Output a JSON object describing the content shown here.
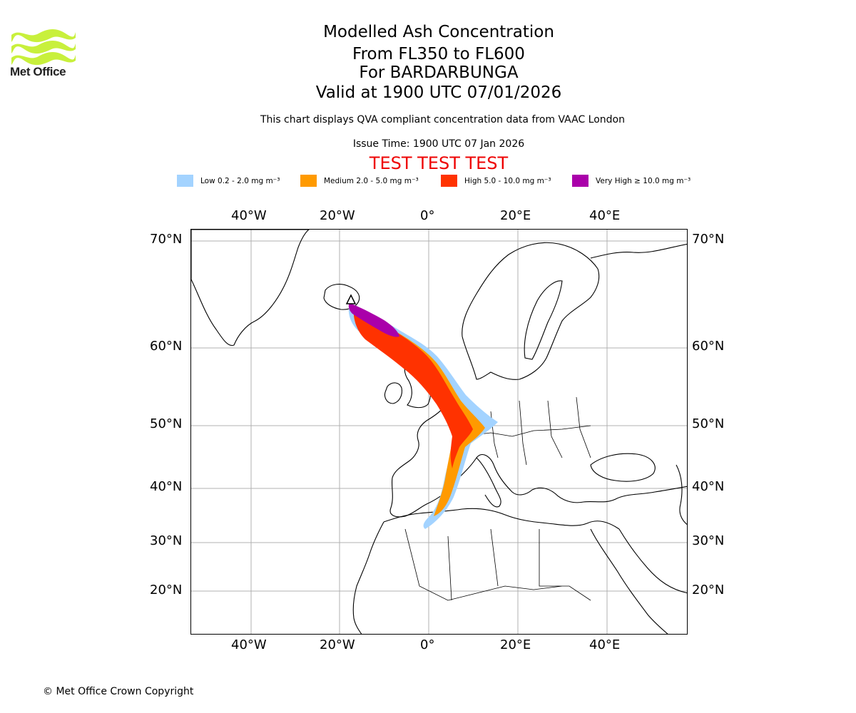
{
  "header": {
    "brand": "Met Office",
    "title_line1": "Modelled Ash Concentration",
    "title_line2": "From FL350 to FL600",
    "title_line3": "For BARDARBUNGA",
    "title_line4": "Valid at 1900 UTC 07/01/2026",
    "compliance_note": "This chart displays QVA compliant concentration data from VAAC London",
    "issue_time": "Issue Time: 1900 UTC 07 Jan 2026",
    "test_banner": "TEST TEST TEST"
  },
  "legend": [
    {
      "label": "Low 0.2 - 2.0 mg m⁻³",
      "color": "#a3d3ff"
    },
    {
      "label": "Medium 2.0 - 5.0 mg m⁻³",
      "color": "#ff9a00"
    },
    {
      "label": "High 5.0 - 10.0 mg m⁻³",
      "color": "#ff3200"
    },
    {
      "label": "Very High ≥ 10.0 mg m⁻³",
      "color": "#aa00aa"
    }
  ],
  "map": {
    "longitude_labels": [
      "40°W",
      "20°W",
      "0°",
      "20°E",
      "40°E"
    ],
    "latitude_labels": [
      "70°N",
      "60°N",
      "50°N",
      "40°N",
      "30°N",
      "20°N"
    ],
    "volcano": "BARDARBUNGA"
  },
  "footer": {
    "copyright": "© Met Office Crown Copyright"
  }
}
